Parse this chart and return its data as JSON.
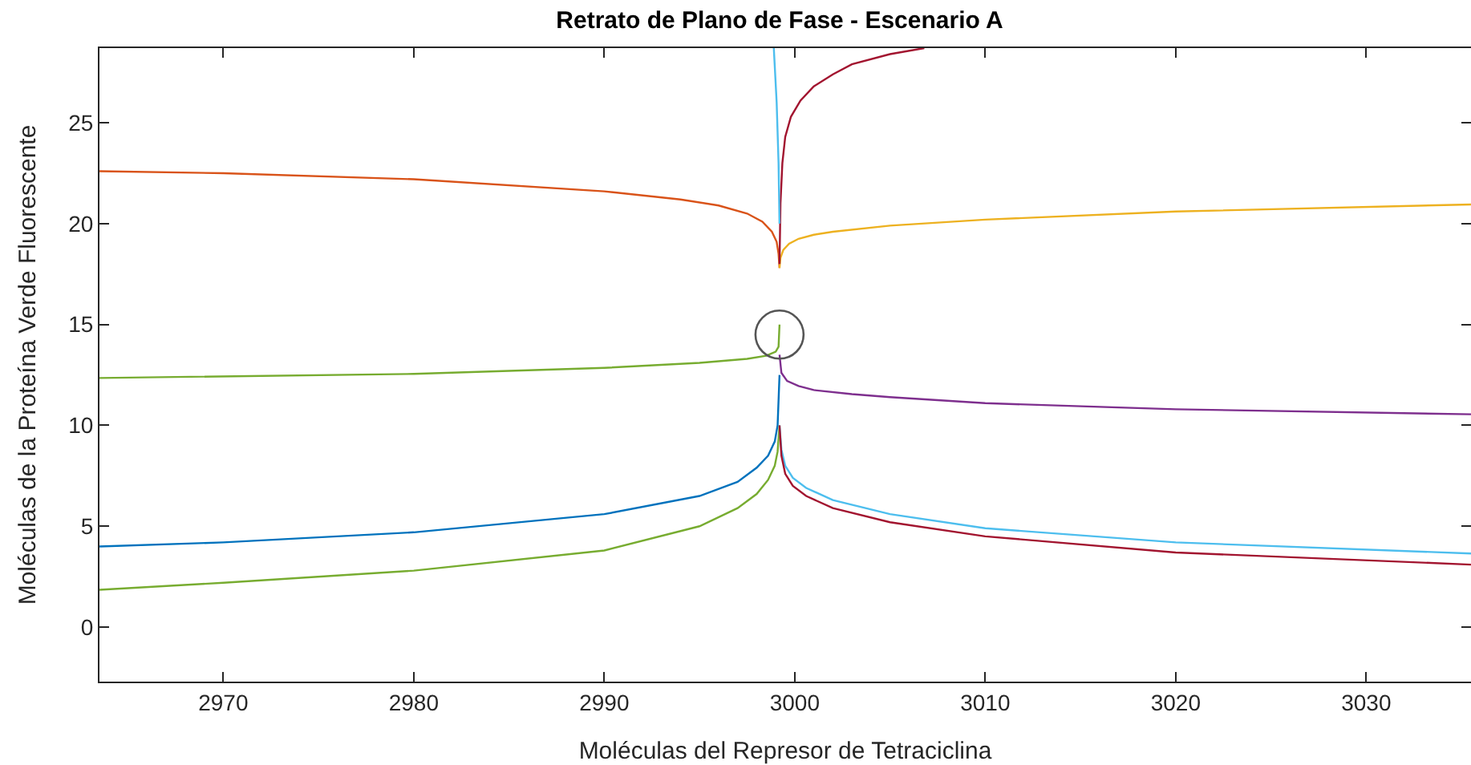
{
  "chart_data": {
    "type": "line",
    "title": "Retrato de Plano de Fase - Escenario A",
    "xlabel": "Moléculas del Represor de Tetraciclina",
    "ylabel": "Moléculas de la Proteína Verde Fluorescente",
    "xlim": [
      2963.5,
      3035.5
    ],
    "ylim": [
      -2.7,
      28.7
    ],
    "xticks": [
      2970,
      2980,
      2990,
      3000,
      3010,
      3020,
      3030
    ],
    "yticks": [
      0,
      5,
      10,
      15,
      20,
      25
    ],
    "grid": false,
    "marker": "none",
    "line_style": "solid",
    "series": [
      {
        "color": "#d95319",
        "x": [
          2963.5,
          2970,
          2980,
          2990,
          2994,
          2996,
          2997.5,
          2998.3,
          2998.8,
          2999.05,
          2999.15,
          2999.2
        ],
        "values": [
          22.6,
          22.5,
          22.2,
          21.6,
          21.2,
          20.9,
          20.5,
          20.1,
          19.6,
          19.1,
          18.5,
          17.8
        ]
      },
      {
        "color": "#edb120",
        "x": [
          2999.2,
          2999.25,
          2999.4,
          2999.7,
          3000.2,
          3001,
          3002,
          3005,
          3010,
          3020,
          3035.5
        ],
        "values": [
          17.8,
          18.3,
          18.7,
          19,
          19.25,
          19.45,
          19.6,
          19.9,
          20.2,
          20.6,
          20.95
        ]
      },
      {
        "color": "#a2142f",
        "x": [
          2999.2,
          2999.25,
          2999.35,
          2999.5,
          2999.8,
          3000.3,
          3001,
          3002,
          3003,
          3005,
          3006.8
        ],
        "values": [
          18,
          21,
          23,
          24.3,
          25.3,
          26.1,
          26.8,
          27.4,
          27.9,
          28.4,
          28.7
        ]
      },
      {
        "color": "#4dbeee",
        "x": [
          2998.9,
          2999.05,
          2999.15,
          2999.2
        ],
        "values": [
          28.7,
          26,
          23,
          20
        ]
      },
      {
        "color": "#77ac30",
        "x": [
          2963.5,
          2980,
          2990,
          2995,
          2997.5,
          2998.5,
          2999,
          2999.15,
          2999.2
        ],
        "values": [
          12.35,
          12.55,
          12.85,
          13.1,
          13.3,
          13.45,
          13.65,
          13.9,
          15
        ]
      },
      {
        "color": "#7e2f8e",
        "x": [
          2999.2,
          2999.3,
          2999.6,
          3000.2,
          3001,
          3003,
          3005,
          3010,
          3020,
          3035.5
        ],
        "values": [
          13.5,
          12.6,
          12.2,
          11.95,
          11.75,
          11.55,
          11.4,
          11.1,
          10.8,
          10.55
        ]
      },
      {
        "color": "#0072bd",
        "x": [
          2963.5,
          2970,
          2980,
          2990,
          2995,
          2997,
          2998,
          2998.6,
          2998.95,
          2999.1,
          2999.2
        ],
        "values": [
          4,
          4.2,
          4.7,
          5.6,
          6.5,
          7.2,
          7.9,
          8.5,
          9.2,
          10,
          12.5
        ]
      },
      {
        "color": "#77ac30",
        "x": [
          2963.5,
          2970,
          2980,
          2990,
          2995,
          2997,
          2998,
          2998.6,
          2998.95,
          2999.1,
          2999.2
        ],
        "values": [
          1.85,
          2.2,
          2.8,
          3.8,
          5,
          5.9,
          6.6,
          7.3,
          8,
          8.7,
          10
        ]
      },
      {
        "color": "#4dbeee",
        "x": [
          2999.2,
          2999.3,
          2999.5,
          2999.9,
          3000.6,
          3002,
          3005,
          3010,
          3020,
          3035.5
        ],
        "values": [
          10,
          8.8,
          8,
          7.4,
          6.9,
          6.3,
          5.6,
          4.9,
          4.2,
          3.65
        ]
      },
      {
        "color": "#a2142f",
        "x": [
          2999.2,
          2999.3,
          2999.5,
          2999.9,
          3000.6,
          3002,
          3005,
          3010,
          3020,
          3035.5
        ],
        "values": [
          10,
          8.5,
          7.6,
          7,
          6.5,
          5.9,
          5.2,
          4.5,
          3.7,
          3.1
        ]
      },
      {
        "type": "scatter",
        "marker": "circle",
        "color": "#555555",
        "x": [
          2999.2
        ],
        "values": [
          14.5
        ]
      }
    ]
  }
}
